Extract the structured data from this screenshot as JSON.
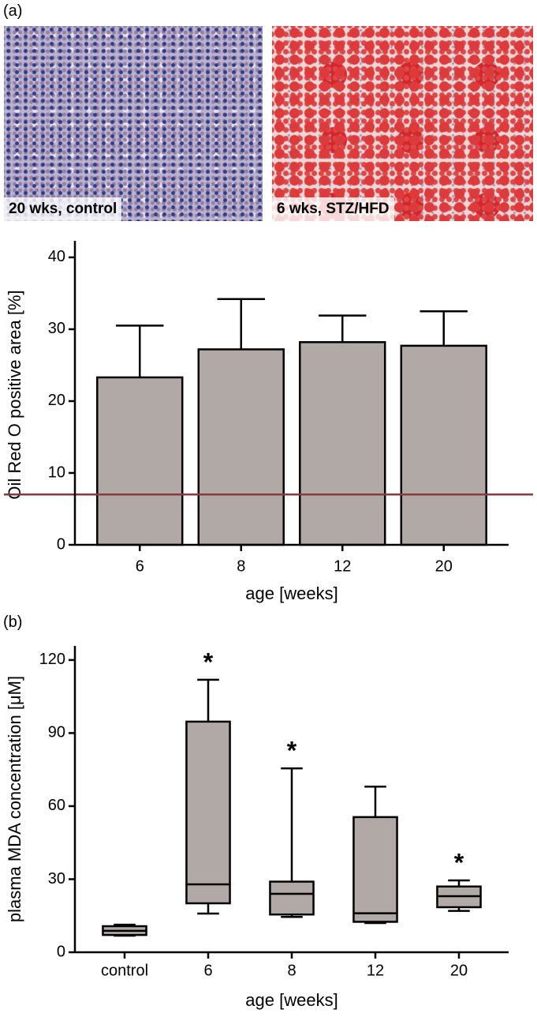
{
  "figure": {
    "panel_labels": [
      "(a)",
      "(b)"
    ],
    "images": [
      {
        "caption": "20 wks, control"
      },
      {
        "caption": "6 wks, STZ/HFD"
      }
    ]
  },
  "chart_data": [
    {
      "type": "bar",
      "ylabel": "Oil  Red O positive area [%]",
      "xlabel": "age [weeks]",
      "categories": [
        "6",
        "8",
        "12",
        "20"
      ],
      "values": [
        23.3,
        27.2,
        28.2,
        27.7
      ],
      "errors": [
        7.2,
        7.0,
        3.7,
        4.8
      ],
      "color": "#b1a9a5",
      "reference_line": {
        "value": 7,
        "color": "#8b3a3a"
      },
      "ylim": [
        0,
        42.3
      ],
      "yticks": [
        0,
        10,
        20,
        30,
        40
      ]
    },
    {
      "type": "box",
      "ylabel": "plasma MDA concentration [μM]",
      "xlabel": "age [weeks]",
      "categories": [
        "control",
        "6",
        "8",
        "12",
        "20"
      ],
      "min": [
        6.8,
        15.9,
        14.5,
        12,
        17
      ],
      "q1": [
        7.1,
        20.1,
        15.5,
        12.5,
        18.5
      ],
      "median": [
        8.8,
        27.9,
        24,
        16,
        23
      ],
      "q3": [
        10.7,
        94.7,
        29,
        55.5,
        27
      ],
      "max": [
        11.3,
        111.9,
        75.5,
        68,
        29.5
      ],
      "significance": [
        null,
        "*",
        "*",
        null,
        "*"
      ],
      "color": "#b1a9a5",
      "ylim": [
        0,
        125.8
      ],
      "yticks": [
        0,
        30,
        60,
        90,
        120
      ]
    }
  ]
}
